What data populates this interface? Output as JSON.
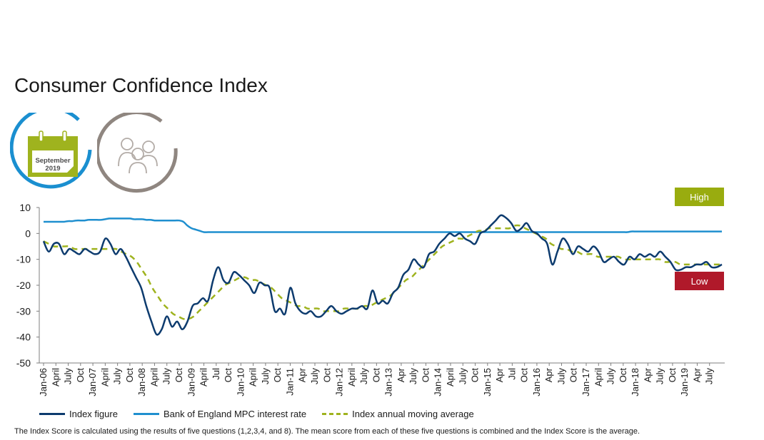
{
  "title": "Consumer Confidence Index",
  "badge_month": "September",
  "badge_year": "2019",
  "high_label": "High",
  "low_label": "Low",
  "footnote": "The Index Score is calculated using the results of five questions (1,2,3,4, and 8). The mean score from each of these five questions is combined and the Index Score is the average.",
  "icons": [
    "calendar-icon",
    "people-icon"
  ],
  "colors": {
    "index": "#0d3b6e",
    "interest": "#1f8fcf",
    "moving_avg": "#9fb31e",
    "high": "#99ac0f",
    "low": "#b0192a",
    "badge_ring_blue": "#1a8fd0",
    "badge_ring_grey": "#8f8680"
  },
  "chart_data": {
    "type": "line",
    "ylim": [
      -50,
      10
    ],
    "yticks": [
      10,
      0,
      -10,
      -20,
      -30,
      -40,
      -50
    ],
    "x_start": "Jan-06",
    "x_tick_labels": [
      "Jan-06",
      "April",
      "July",
      "Oct",
      "Jan-07",
      "April",
      "July",
      "Oct",
      "Jan-08",
      "April",
      "July",
      "Oct",
      "Jan-09",
      "April",
      "Jul",
      "Oct",
      "Jan-10",
      "April",
      "July",
      "Oct",
      "Jan-11",
      "Apr",
      "July",
      "Oct",
      "Jan-12",
      "April",
      "July",
      "Oct",
      "Jan-13",
      "Apr",
      "July",
      "Oct",
      "Jan-14",
      "April",
      "July",
      "Oct",
      "Jan-15",
      "Apr",
      "Jul",
      "Oct",
      "Jan-16",
      "Apr",
      "July",
      "Oct",
      "Jan-17",
      "April",
      "July",
      "Oct",
      "Jan-18",
      "Apr",
      "July",
      "Oct",
      "Jan-19",
      "Apr",
      "July"
    ],
    "series": [
      {
        "name": "Index figure",
        "values": [
          -3,
          -7,
          -4,
          -4,
          -8,
          -6,
          -7,
          -8,
          -6,
          -7,
          -8,
          -7,
          -2,
          -4,
          -8,
          -6,
          -9,
          -13,
          -17,
          -21,
          -28,
          -34,
          -39,
          -37,
          -32,
          -36,
          -34,
          -37,
          -34,
          -28,
          -27,
          -25,
          -26,
          -18,
          -13,
          -18,
          -19,
          -15,
          -16,
          -18,
          -20,
          -23,
          -19,
          -20,
          -21,
          -30,
          -29,
          -31,
          -21,
          -27,
          -30,
          -31,
          -30,
          -32,
          -32,
          -30,
          -28,
          -30,
          -31,
          -30,
          -29,
          -29,
          -28,
          -29,
          -22,
          -27,
          -26,
          -27,
          -23,
          -21,
          -16,
          -14,
          -10,
          -12,
          -13,
          -8,
          -7,
          -4,
          -2,
          0,
          -1,
          0,
          -2,
          -3,
          -4,
          0,
          1,
          3,
          5,
          7,
          6,
          4,
          1,
          2,
          4,
          1,
          0,
          -2,
          -4,
          -12,
          -7,
          -2,
          -4,
          -8,
          -5,
          -6,
          -7,
          -5,
          -7,
          -11,
          -10,
          -9,
          -11,
          -12,
          -9,
          -10,
          -8,
          -9,
          -8,
          -9,
          -7,
          -9,
          -11,
          -14,
          -14,
          -13,
          -13,
          -12,
          -12,
          -11,
          -13,
          -13,
          -12
        ],
        "color": "#0d3b6e"
      },
      {
        "name": "Bank of England MPC interest rate",
        "values": [
          4.5,
          4.5,
          4.5,
          4.5,
          4.5,
          4.5,
          4.75,
          4.75,
          5,
          5,
          5,
          5.25,
          5.25,
          5.25,
          5.25,
          5.5,
          5.75,
          5.75,
          5.75,
          5.75,
          5.75,
          5.75,
          5.5,
          5.5,
          5.5,
          5.25,
          5.25,
          5,
          5,
          5,
          5,
          5,
          5,
          5,
          4.5,
          3,
          2,
          1.5,
          1,
          0.5,
          0.5,
          0.5
        ],
        "tail_value": 0.5,
        "tail_end_value": 0.75,
        "color": "#1f8fcf"
      },
      {
        "name": "Index annual moving average",
        "values": [
          -3,
          -4,
          -5,
          -5,
          -5,
          -5,
          -6,
          -6,
          -6,
          -6,
          -6,
          -6,
          -6,
          -6,
          -6,
          -7,
          -8,
          -9,
          -11,
          -14,
          -17,
          -21,
          -24,
          -27,
          -29,
          -31,
          -32,
          -33,
          -33,
          -32,
          -30,
          -28,
          -26,
          -24,
          -22,
          -20,
          -19,
          -18,
          -17,
          -17,
          -18,
          -18,
          -19,
          -20,
          -21,
          -23,
          -25,
          -26,
          -27,
          -28,
          -28,
          -29,
          -29,
          -29,
          -30,
          -30,
          -30,
          -30,
          -29,
          -29,
          -29,
          -29,
          -28,
          -28,
          -27,
          -26,
          -25,
          -24,
          -22,
          -20,
          -18,
          -17,
          -15,
          -13,
          -11,
          -9,
          -7,
          -5,
          -4,
          -3,
          -2,
          -2,
          -1,
          0,
          1,
          1,
          2,
          2,
          2,
          2,
          2,
          3,
          3,
          2,
          1,
          0,
          -1,
          -2,
          -4,
          -5,
          -6,
          -6,
          -7,
          -7,
          -8,
          -8,
          -8,
          -9,
          -9,
          -9,
          -9,
          -9,
          -10,
          -10,
          -10,
          -10,
          -10,
          -10,
          -10,
          -10,
          -11,
          -11,
          -11,
          -12,
          -12,
          -12,
          -12,
          -12,
          -12,
          -12,
          -12,
          -12
        ],
        "color": "#9fb31e"
      }
    ]
  }
}
